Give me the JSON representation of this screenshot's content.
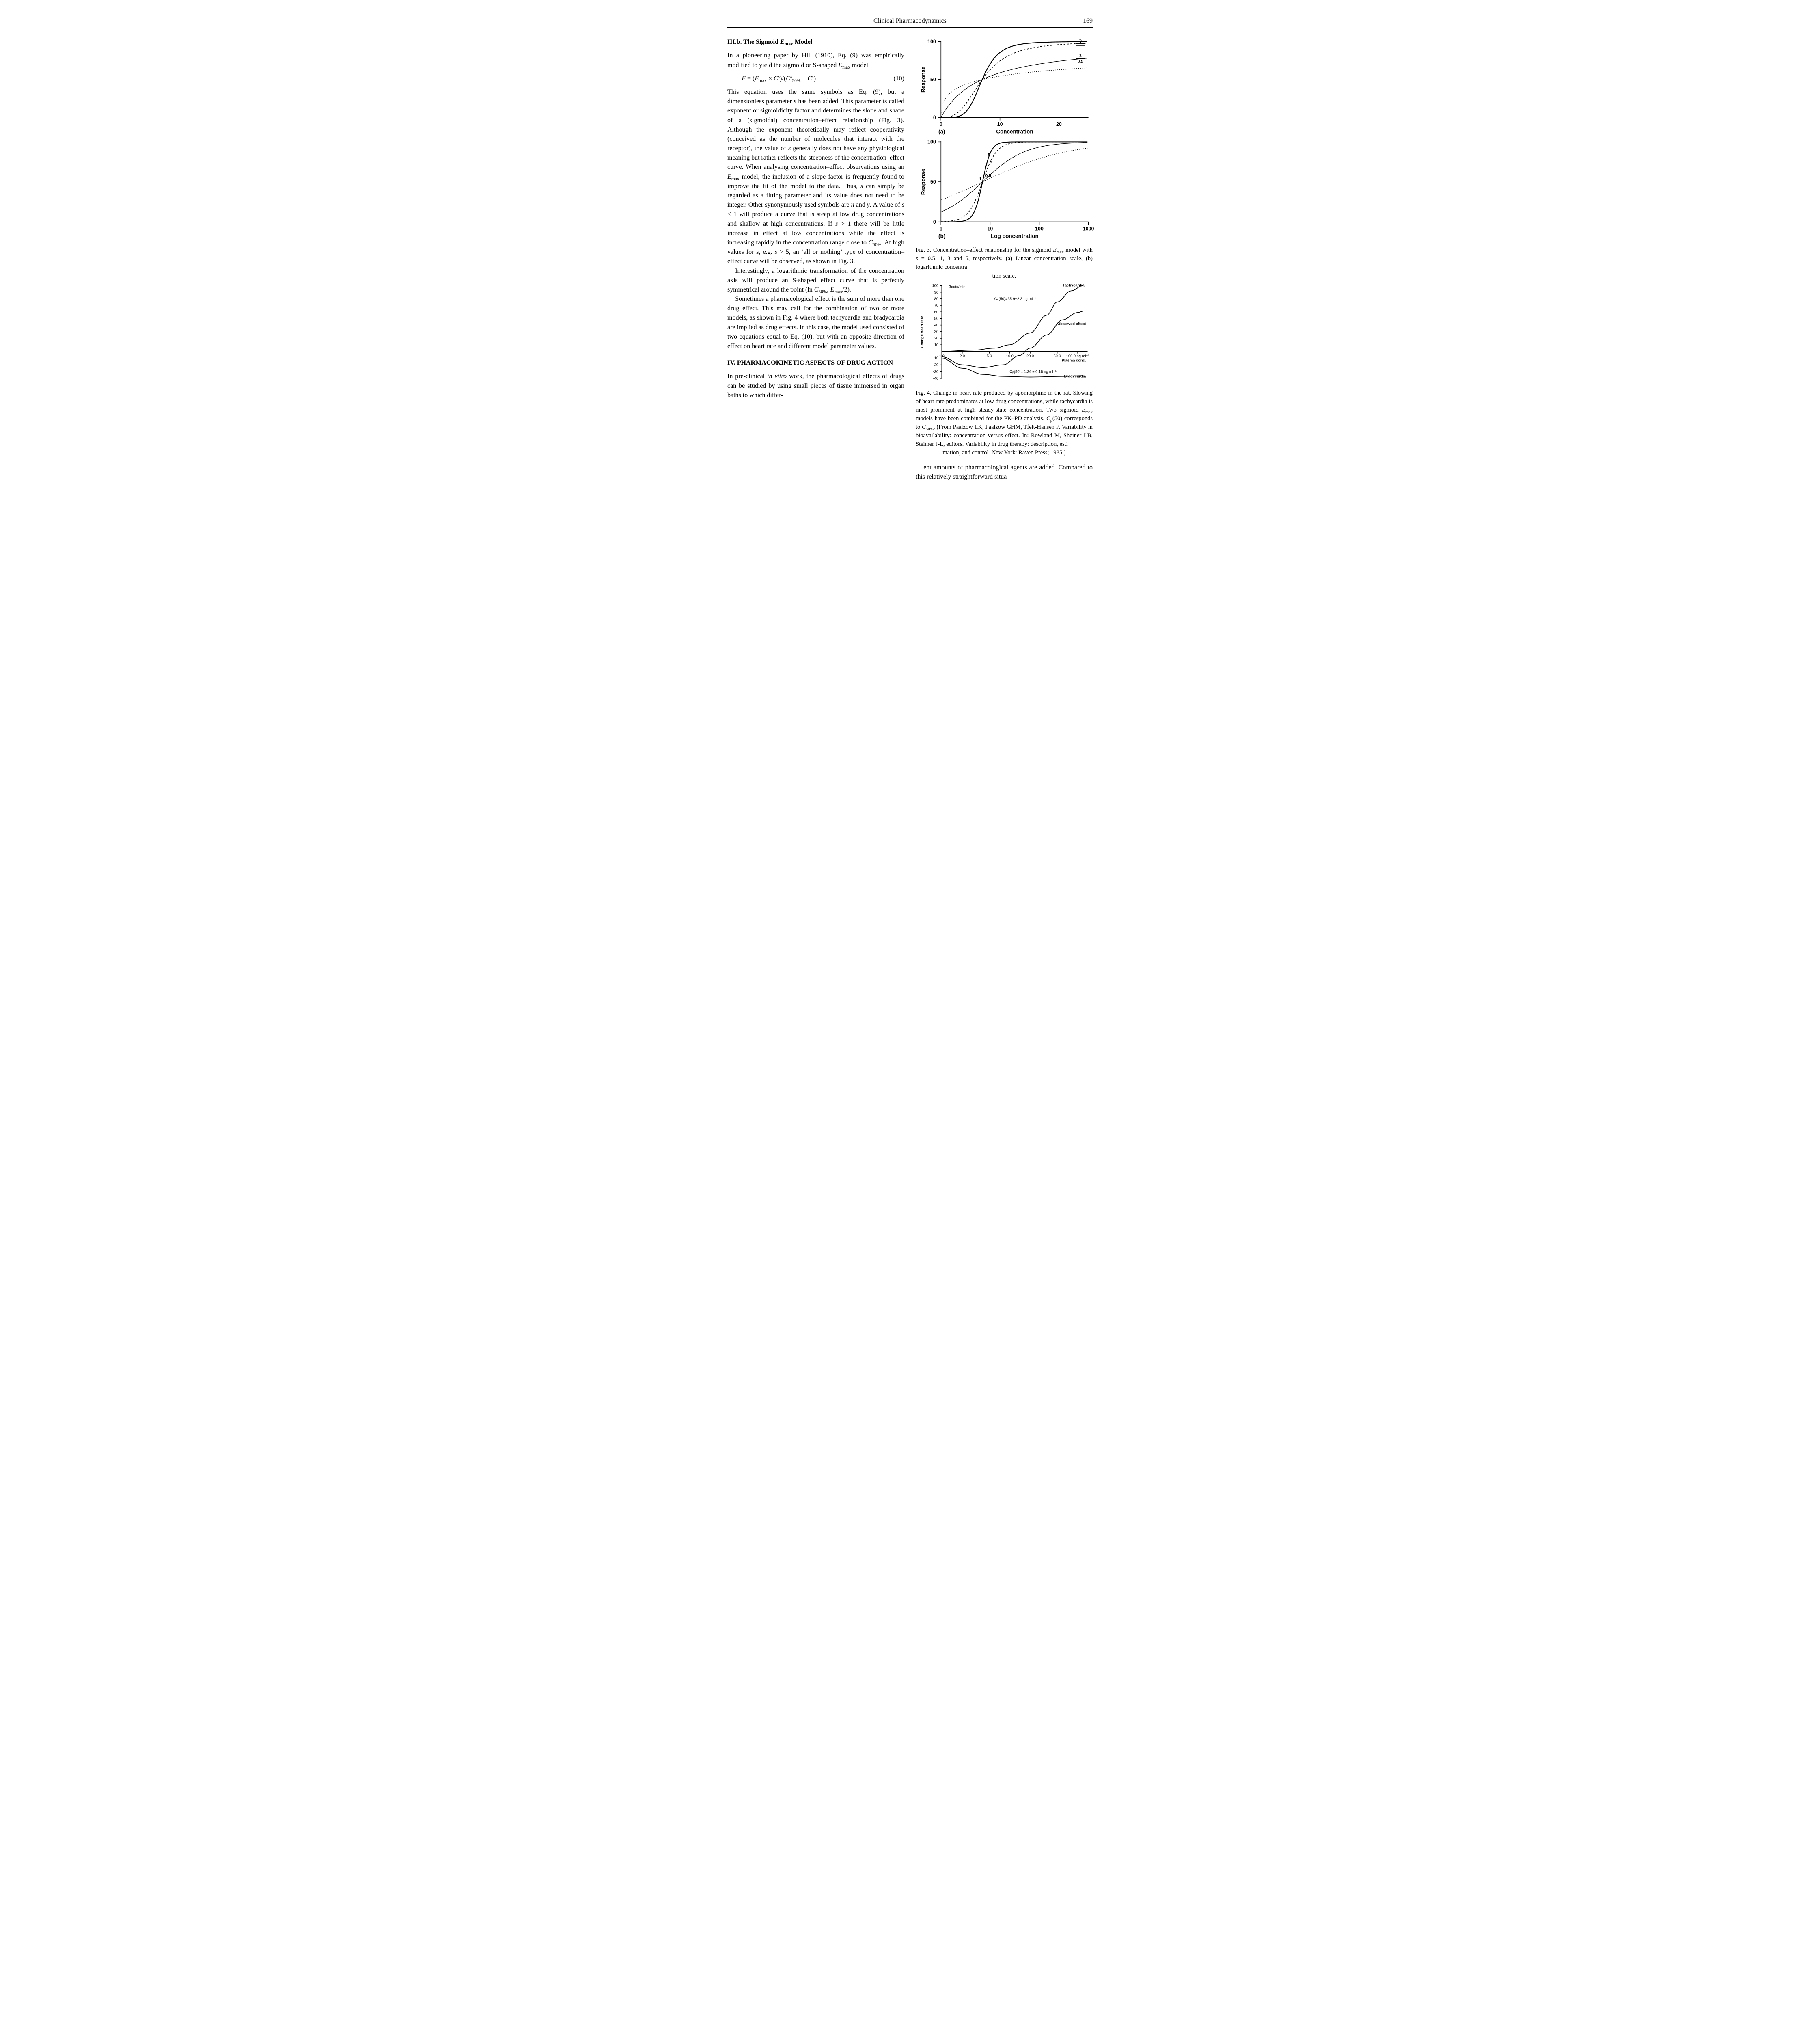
{
  "running_head": {
    "title": "Clinical Pharmacodynamics",
    "page": "169"
  },
  "sectionIIIb": {
    "heading_pre": "III.b.  The Sigmoid ",
    "heading_var": "E",
    "heading_sub": "max",
    "heading_post": " Model"
  },
  "p1a": "In a pioneering paper by Hill (1910), Eq. (9) was empirically modified to yield the sigmoid or S-shaped ",
  "p1b": " model:",
  "eq10": {
    "text_parts": [
      "E",
      " = (",
      "E",
      "max",
      " × ",
      "C",
      "s",
      ")/(",
      "C",
      "s",
      "50%",
      " + ",
      "C",
      "s",
      ")"
    ],
    "num": "(10)"
  },
  "p2a": "This equation uses the same symbols as Eq. (9), but a dimensionless parameter ",
  "p2s": "s",
  "p2b": " has been added. This parameter is called exponent or sigmoidicity factor and determines the slope and shape of a (sigmoidal) concentration–effect relationship (Fig. 3). Although the exponent theoretically may reflect cooperativity (conceived as the number of molecules that interact with the receptor), the value of ",
  "p2c": " generally does not have any physiological meaning but rather reflects the steepness of the concentration–effect curve. When analysing concentration–effect observations using an ",
  "p2d": " model, the inclusion of a slope factor is frequently found to improve the fit of the model to the data. Thus, ",
  "p2e": " can simply be regarded as a fitting parameter and its value does not need to be integer. Other synonymously used symbols are ",
  "p2n": "n",
  "p2f": " and ",
  "p2g": "γ",
  "p2h": ". A value of ",
  "p2i": " < 1 will produce a curve that is steep at low drug concentrations and shallow at high concentrations. If ",
  "p2j": " > 1 there will be little increase in effect at low concentrations while the effect is increasing rapidly in the concentration range close to ",
  "p2k": ". At high values for ",
  "p2l": ", e.g. ",
  "p2m": " > 5, an ‘all or nothing’ type of concentration–effect curve will be observed, as shown in Fig. 3.",
  "p3a": "Interestingly, a logarithmic transformation of the concentration axis will produce an S-shaped effect curve that is perfectly symmetrical around the point (ln ",
  "p3b": ", ",
  "p3c": "/2).",
  "p4": "Sometimes a pharmacological effect is the sum of more than one drug effect. This may call for the combination of two or more models, as shown in Fig. 4 where both tachycardia and bradycardia are implied as drug effects. In this case, the model used consisted of two equations equal to Eq. (10), but with an opposite direction of effect on heart rate and different model parameter values.",
  "sectionIV": "IV.  PHARMACOKINETIC ASPECTS OF DRUG ACTION",
  "p5a": "In pre-clinical ",
  "p5b": "in vitro",
  "p5c": " work, the pharmacological effects of drugs can be studied by using small pieces of tissue immersed in organ baths to which differ-",
  "p6": "ent amounts of pharmacological agents are added. Compared to this relatively straightforward situa-",
  "fig3": {
    "panel_a": {
      "tag": "(a)",
      "ylabel": "Response",
      "xlabel": "Concentration",
      "ymax_label": "100",
      "ymid_label": "50",
      "ymin_label": "0",
      "xticks": [
        "0",
        "10",
        "20"
      ],
      "xlim": [
        0,
        25
      ],
      "ylim": [
        0,
        100
      ],
      "series": [
        {
          "s": 0.5,
          "label": "0.5",
          "style": "dash-dot",
          "weight": "thin"
        },
        {
          "s": 1,
          "label": "1",
          "style": "solid",
          "weight": "thin"
        },
        {
          "s": 3,
          "label": "3",
          "style": "dash-short",
          "weight": ""
        },
        {
          "s": 5,
          "label": "5",
          "style": "solid",
          "weight": "bold"
        }
      ],
      "C50": 7
    },
    "panel_b": {
      "tag": "(b)",
      "ylabel": "Response",
      "xlabel": "Log concentration",
      "ymax_label": "100",
      "ymid_label": "50",
      "ymin_label": "0",
      "xticks": [
        "1",
        "10",
        "100",
        "1000"
      ],
      "xlim_log10": [
        0,
        3
      ],
      "ylim": [
        0,
        100
      ],
      "series": [
        {
          "s": 0.5,
          "label": "0.5",
          "style": "dash-dot",
          "weight": "thin"
        },
        {
          "s": 1,
          "label": "1",
          "style": "solid",
          "weight": "thin"
        },
        {
          "s": 3,
          "label": "3",
          "style": "dash-short",
          "weight": ""
        },
        {
          "s": 5,
          "label": "5",
          "style": "solid",
          "weight": "bold"
        }
      ],
      "C50": 7
    },
    "caption_a": "Fig. 3.  Concentration–effect relationship for the sigmoid ",
    "caption_b": "  model with ",
    "caption_c": " = 0.5, 1, 3 and 5, respectively. (a) Linear concentration scale, (b) logarithmic concentra",
    "caption_last": "tion scale."
  },
  "fig4": {
    "ylabel": "Change heart rate",
    "ylabel_unit": "Beats/min",
    "xlabel": "Plasma conc.",
    "tachy": "Tachycardia",
    "brady": "Bradycardia",
    "obs": "Observed effect",
    "cp_tachy": "Cₚ(50)=35.9±2.3 ng ml⁻¹",
    "cp_brady": "Cₚ(50)= 1.24 ± 0.18 ng ml⁻¹",
    "xticks": [
      "1.0",
      "2.0",
      "5.0",
      "10.0",
      "20.0",
      "50.0",
      "100.0  ng ml⁻¹"
    ],
    "yticks_pos": [
      "100",
      "90",
      "80",
      "70",
      "60",
      "50",
      "40",
      "30",
      "20",
      "10"
    ],
    "yticks_neg": [
      "-10",
      "-20",
      "-30",
      "-40"
    ],
    "curves": {
      "tachy": [
        [
          1,
          0
        ],
        [
          3,
          2
        ],
        [
          6,
          5
        ],
        [
          10,
          10
        ],
        [
          20,
          28
        ],
        [
          35,
          55
        ],
        [
          50,
          75
        ],
        [
          80,
          92
        ],
        [
          120,
          100
        ]
      ],
      "brady": [
        [
          1,
          -10
        ],
        [
          2,
          -25
        ],
        [
          4,
          -34
        ],
        [
          8,
          -37
        ],
        [
          20,
          -38
        ],
        [
          60,
          -37
        ],
        [
          120,
          -36
        ]
      ],
      "observed": [
        [
          1,
          -8
        ],
        [
          2,
          -20
        ],
        [
          4,
          -24
        ],
        [
          8,
          -20
        ],
        [
          14,
          -6
        ],
        [
          20,
          5
        ],
        [
          35,
          25
        ],
        [
          60,
          48
        ],
        [
          100,
          59
        ],
        [
          120,
          61
        ]
      ]
    },
    "caption_a": "Fig. 4.  Change in heart rate produced by apomorphine in the rat. Slowing of heart rate predominates at low drug concentrations, while tachycardia is most prominent at high steady-state concentration. Two sigmoid ",
    "caption_b": " models have been combined for the PK–PD analysis. ",
    "caption_c": "(50) corresponds to ",
    "caption_d": ". (From Paalzow LK, Paalzow GHM, Tfelt-Hansen P. Variability in bioavailability: concentration versus effect. In: Rowland M, Sheiner LB, Steimer J-L, editors. Variability in drug therapy: description, esti",
    "caption_last": "mation, and control. New York: Raven Press; 1985.)"
  },
  "style": {
    "text_color": "#000000",
    "bg_color": "#ffffff",
    "axis_stroke_width": 1.6,
    "curve_stroke_width": 1.6,
    "font_body": "Times New Roman",
    "font_figure": "Arial"
  }
}
